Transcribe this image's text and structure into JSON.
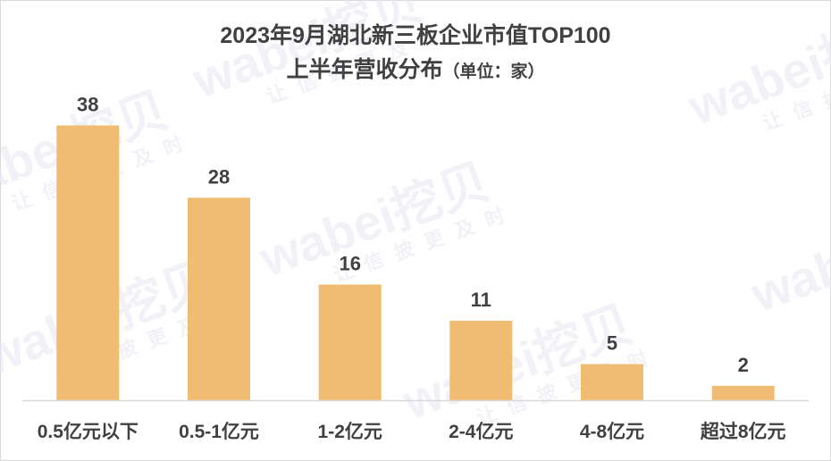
{
  "chart_data": {
    "type": "bar",
    "title": "2023年9月湖北新三板企业市值TOP100",
    "subtitle": "上半年营收分布",
    "unit_label": "（单位：家）",
    "categories": [
      "0.5亿元以下",
      "0.5-1亿元",
      "1-2亿元",
      "2-4亿元",
      "4-8亿元",
      "超过8亿元"
    ],
    "values": [
      38,
      28,
      16,
      11,
      5,
      2
    ],
    "xlabel": "",
    "ylabel": "",
    "ylim": [
      0,
      42
    ],
    "grid": false,
    "legend": "none",
    "bar_color": "#F0BC72",
    "axis_color": "#d9d9d9",
    "label_color": "#404040"
  },
  "watermark": {
    "brand": "wabei挖贝",
    "slogan": "让信披更及时",
    "color": "#d6d9e6"
  }
}
